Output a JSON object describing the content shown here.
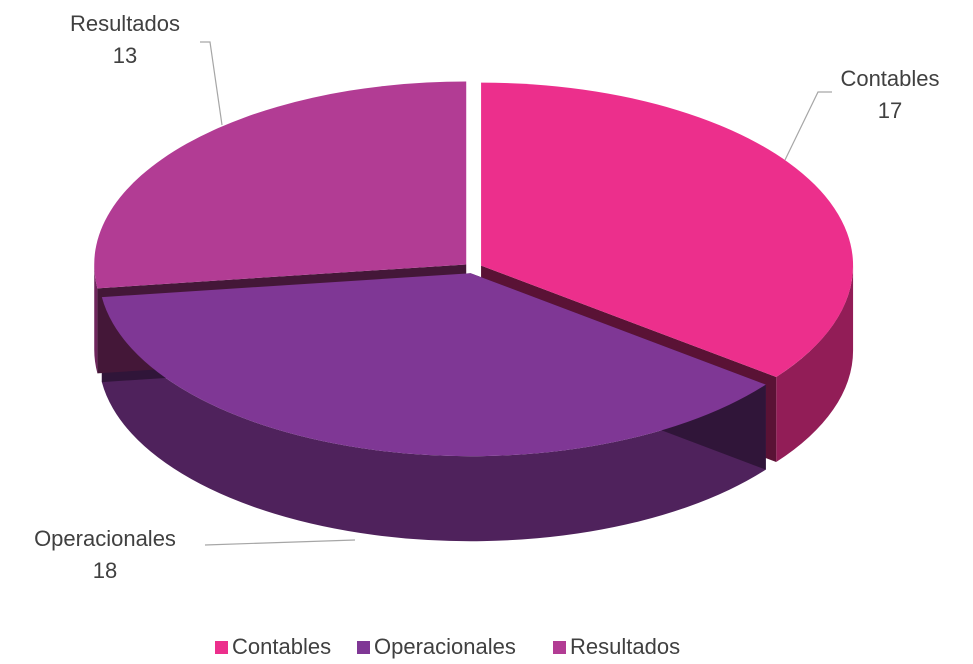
{
  "chart_data": {
    "type": "pie",
    "categories": [
      "Contables",
      "Operacionales",
      "Resultados"
    ],
    "values": [
      17,
      18,
      13
    ],
    "colors": [
      "#ec2f8c",
      "#7f3795",
      "#b23c94"
    ],
    "legend": "bottom"
  }
}
